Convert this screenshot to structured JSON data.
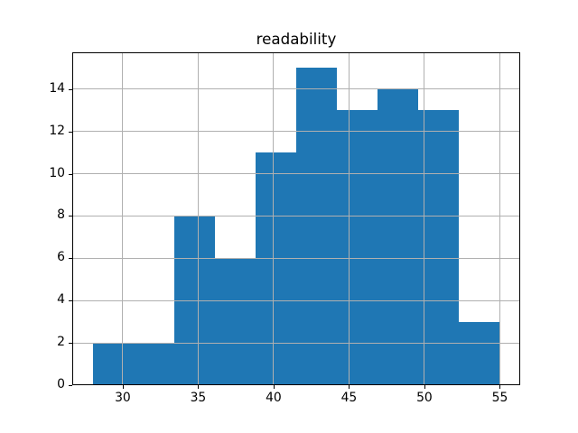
{
  "figure": {
    "background": "#ffffff"
  },
  "chart_data": {
    "type": "bar",
    "subtype": "histogram",
    "title": "readability",
    "xlabel": "",
    "ylabel": "",
    "bin_edges": [
      28,
      30.7,
      33.4,
      36.1,
      38.8,
      41.5,
      44.2,
      46.9,
      49.6,
      52.3,
      55
    ],
    "values": [
      2,
      2,
      8,
      6,
      11,
      15,
      13,
      14,
      13,
      3
    ],
    "x_ticks": [
      "30",
      "35",
      "40",
      "45",
      "50",
      "55"
    ],
    "x_tick_values": [
      30,
      35,
      40,
      45,
      50,
      55
    ],
    "y_ticks": [
      "0",
      "2",
      "4",
      "6",
      "8",
      "10",
      "12",
      "14"
    ],
    "y_tick_values": [
      0,
      2,
      4,
      6,
      8,
      10,
      12,
      14
    ],
    "xlim": [
      26.65,
      56.35
    ],
    "ylim": [
      0,
      15.75
    ],
    "grid": true,
    "grid_above_bars": true,
    "legend": null,
    "colors": {
      "bar": "#1f77b4",
      "grid": "#b0b0b0",
      "spine": "#000000",
      "text": "#000000"
    }
  }
}
